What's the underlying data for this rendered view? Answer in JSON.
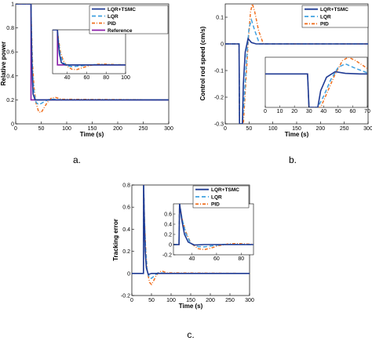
{
  "chart_data": [
    {
      "type": "line",
      "panel": "a.",
      "xlabel": "Time (s)",
      "ylabel": "Relative power",
      "xlim": [
        0,
        300
      ],
      "ylim": [
        0,
        1
      ],
      "xticks": [
        0,
        50,
        100,
        150,
        200,
        250,
        300
      ],
      "yticks": [
        0,
        0.2,
        0.4,
        0.6,
        0.8,
        1
      ],
      "legend": "top-right",
      "series": [
        {
          "name": "LQR+TSMC",
          "color": "#1f3a93",
          "style": "solid",
          "x": [
            0,
            30,
            30.5,
            32,
            34,
            38,
            45,
            55,
            70,
            300
          ],
          "y": [
            1,
            1,
            0.8,
            0.45,
            0.25,
            0.2,
            0.2,
            0.2,
            0.2,
            0.2
          ]
        },
        {
          "name": "LQR",
          "color": "#3fa0e0",
          "style": "dashed",
          "x": [
            0,
            30,
            31,
            33,
            36,
            40,
            45,
            50,
            58,
            66,
            75,
            90,
            300
          ],
          "y": [
            1,
            1,
            0.75,
            0.42,
            0.25,
            0.18,
            0.16,
            0.17,
            0.19,
            0.205,
            0.205,
            0.2,
            0.2
          ]
        },
        {
          "name": "PID",
          "color": "#f07020",
          "style": "dashdot",
          "x": [
            0,
            30,
            31,
            33,
            36,
            40,
            45,
            50,
            55,
            62,
            70,
            78,
            90,
            300
          ],
          "y": [
            1,
            1,
            0.8,
            0.5,
            0.3,
            0.17,
            0.1,
            0.095,
            0.13,
            0.18,
            0.215,
            0.22,
            0.205,
            0.2
          ]
        },
        {
          "name": "Reference",
          "color": "#8a1fa8",
          "style": "solid",
          "x": [
            0,
            30,
            30,
            300
          ],
          "y": [
            1,
            1,
            0.2,
            0.2
          ]
        }
      ],
      "inset": {
        "xlim": [
          25,
          100
        ],
        "xticks": [
          40,
          60,
          80,
          100
        ],
        "yticks": []
      }
    },
    {
      "type": "line",
      "panel": "b.",
      "xlabel": "Time (s)",
      "ylabel": "Control rod speed (cm/s)",
      "xlim": [
        0,
        300
      ],
      "ylim": [
        -0.3,
        0.15
      ],
      "xticks": [
        0,
        50,
        100,
        150,
        200,
        250,
        300
      ],
      "yticks": [
        -0.3,
        -0.2,
        -0.1,
        0,
        0.1
      ],
      "legend": "top-right",
      "series": [
        {
          "name": "LQR+TSMC",
          "color": "#1f3a93",
          "style": "solid",
          "x": [
            0,
            29,
            30,
            36,
            38,
            42,
            48,
            55,
            65,
            300
          ],
          "y": [
            0,
            0,
            -0.3,
            -0.3,
            -0.15,
            -0.03,
            0.02,
            0.005,
            0,
            0
          ]
        },
        {
          "name": "LQR",
          "color": "#3fa0e0",
          "style": "dashed",
          "x": [
            0,
            29,
            30,
            36,
            40,
            45,
            50,
            55,
            62,
            72,
            300
          ],
          "y": [
            0,
            0,
            -0.3,
            -0.3,
            -0.2,
            -0.05,
            0.06,
            0.09,
            0.05,
            0,
            0
          ]
        },
        {
          "name": "PID",
          "color": "#f07020",
          "style": "dashdot",
          "x": [
            0,
            29,
            30,
            38,
            43,
            48,
            53,
            57,
            62,
            70,
            80,
            300
          ],
          "y": [
            0,
            0,
            -0.3,
            -0.3,
            -0.15,
            0,
            0.12,
            0.15,
            0.12,
            0.05,
            0,
            0
          ]
        }
      ],
      "inset": {
        "xlim": [
          0,
          70
        ],
        "xticks": [
          0,
          10,
          20,
          30,
          40,
          50,
          60,
          70
        ],
        "yticks": []
      }
    },
    {
      "type": "line",
      "panel": "c.",
      "xlabel": "Time (s)",
      "ylabel": "Tracking error",
      "xlim": [
        0,
        300
      ],
      "ylim": [
        -0.2,
        0.8
      ],
      "xticks": [
        0,
        50,
        100,
        150,
        200,
        250,
        300
      ],
      "yticks": [
        -0.2,
        0,
        0.2,
        0.4,
        0.6,
        0.8
      ],
      "legend": "top-right",
      "series": [
        {
          "name": "LQR+TSMC",
          "color": "#1f3a93",
          "style": "solid",
          "x": [
            0,
            29.5,
            30,
            32,
            34,
            37,
            42,
            50,
            60,
            300
          ],
          "y": [
            0,
            0,
            0.8,
            0.45,
            0.2,
            0.05,
            -0.01,
            0,
            0,
            0
          ]
        },
        {
          "name": "LQR",
          "color": "#3fa0e0",
          "style": "dashed",
          "x": [
            0,
            29.5,
            30,
            32,
            35,
            39,
            45,
            50,
            58,
            66,
            75,
            90,
            300
          ],
          "y": [
            0,
            0,
            0.8,
            0.5,
            0.22,
            0.02,
            -0.04,
            -0.045,
            -0.02,
            0.005,
            0.005,
            0,
            0
          ]
        },
        {
          "name": "PID",
          "color": "#f07020",
          "style": "dashdot",
          "x": [
            0,
            29.5,
            30,
            32,
            35,
            39,
            45,
            50,
            55,
            62,
            70,
            78,
            90,
            300
          ],
          "y": [
            0,
            0,
            0.8,
            0.5,
            0.25,
            0.03,
            -0.08,
            -0.1,
            -0.07,
            -0.02,
            0.015,
            0.02,
            0.005,
            0
          ]
        }
      ],
      "inset": {
        "xlim": [
          25,
          90
        ],
        "xticks": [
          40,
          60,
          80
        ],
        "yticks": [
          -0.2,
          0,
          0.2,
          0.4,
          0.6
        ]
      }
    }
  ]
}
